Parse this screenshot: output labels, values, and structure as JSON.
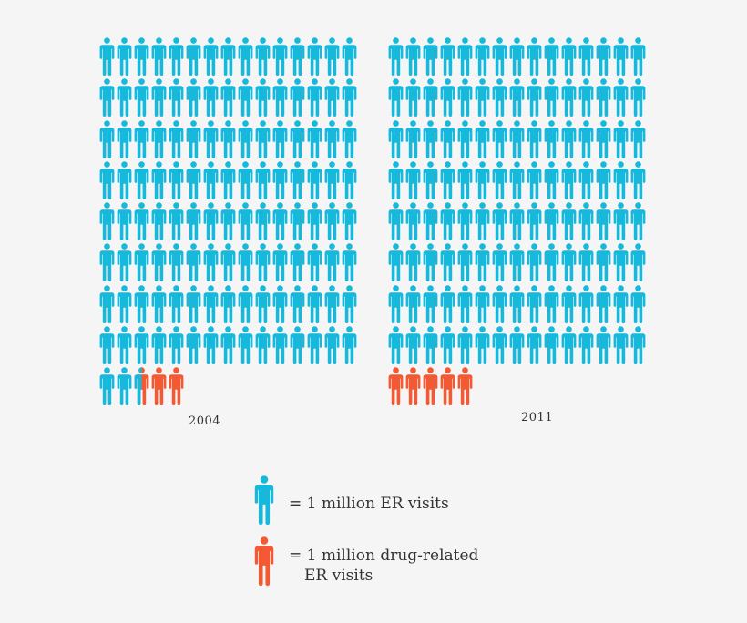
{
  "colors": {
    "background": "#f5f5f5",
    "er_visit": "#16b9dc",
    "drug_related": "#f35a34",
    "text": "#333333"
  },
  "icons": {
    "unit": "person-icon"
  },
  "panels": [
    {
      "year": "2004",
      "per_row": 15,
      "total": 125,
      "drug_related": 2.5
    },
    {
      "year": "2011",
      "per_row": 15,
      "total": 125,
      "drug_related": 5
    }
  ],
  "legend": {
    "blue": {
      "text": "= 1 million ER visits"
    },
    "orange": {
      "line1": "= 1 million drug-related",
      "line2": "ER visits"
    }
  },
  "chart_data": {
    "type": "pictograph",
    "title": "",
    "unit": "1 figure = 1 million ER visits",
    "categories": [
      "2004",
      "2011"
    ],
    "series": [
      {
        "name": "ER visits (not drug-related)",
        "color": "#16b9dc",
        "values": [
          122.5,
          120
        ]
      },
      {
        "name": "Drug-related ER visits",
        "color": "#f35a34",
        "values": [
          2.5,
          5
        ]
      }
    ],
    "totals": [
      125,
      125
    ],
    "legend": [
      {
        "label": "= 1 million ER visits",
        "color": "#16b9dc"
      },
      {
        "label": "= 1 million drug-related ER visits",
        "color": "#f35a34"
      }
    ],
    "layout": {
      "figures_per_row": 15,
      "full_rows": 8,
      "legend_position": "bottom-center"
    }
  }
}
